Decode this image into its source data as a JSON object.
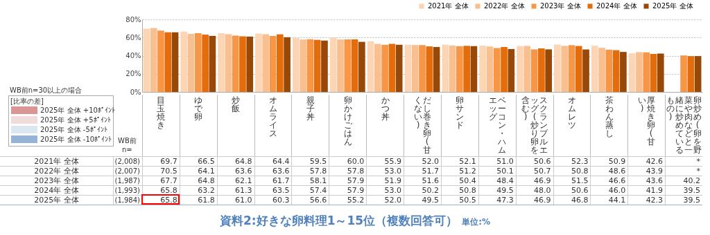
{
  "chart_data": {
    "type": "bar",
    "title": "資料2:好きな卵料理1～15位（複数回答可）",
    "subtitle": "単位:%",
    "categories": [
      "目玉焼き",
      "ゆで卵",
      "炒飯",
      "オムライス",
      "親子丼",
      "卵かけごはん",
      "かつ丼",
      "だし巻き卵(甘くない)",
      "卵サンド",
      "ベーコン・ハムエッグ",
      "スクランブルエッグ(炒り卵を含む)",
      "オムレツ",
      "茶わん蒸し",
      "厚焼き卵(甘い)",
      "卵炒め(卵を野菜や肉などと一緒に炒めているもの)"
    ],
    "series": [
      {
        "name": "2021年 全体",
        "color": "#fcd5b5",
        "values": [
          69.7,
          66.5,
          64.8,
          64.4,
          59.5,
          60.0,
          55.9,
          52.0,
          52.1,
          51.0,
          50.6,
          52.3,
          50.9,
          42.6,
          null
        ],
        "value_labels": [
          "69.7",
          "66.5",
          "64.8",
          "64.4",
          "59.5",
          "60.0",
          "55.9",
          "52.0",
          "52.1",
          "51.0",
          "50.6",
          "52.3",
          "50.9",
          "42.6",
          "*"
        ]
      },
      {
        "name": "2022年 全体",
        "color": "#fabf8f",
        "values": [
          70.5,
          64.1,
          63.6,
          63.6,
          57.8,
          57.8,
          53.0,
          51.7,
          51.2,
          50.1,
          50.7,
          50.8,
          48.6,
          43.9,
          null
        ],
        "value_labels": [
          "70.5",
          "64.1",
          "63.6",
          "63.6",
          "57.8",
          "57.8",
          "53.0",
          "51.7",
          "51.2",
          "50.1",
          "50.7",
          "50.8",
          "48.6",
          "43.9",
          "*"
        ]
      },
      {
        "name": "2023年 全体",
        "color": "#f79646",
        "values": [
          67.7,
          64.8,
          62.1,
          61.7,
          58.1,
          57.9,
          51.9,
          51.6,
          50.4,
          48.4,
          46.9,
          51.5,
          46.6,
          43.6,
          40.2
        ],
        "value_labels": [
          "67.7",
          "64.8",
          "62.1",
          "61.7",
          "58.1",
          "57.9",
          "51.9",
          "51.6",
          "50.4",
          "48.4",
          "46.9",
          "51.5",
          "46.6",
          "43.6",
          "40.2"
        ]
      },
      {
        "name": "2024年 全体",
        "color": "#e46c0a",
        "values": [
          65.8,
          63.2,
          61.3,
          63.5,
          57.4,
          57.9,
          53.0,
          50.2,
          50.8,
          49.5,
          48.0,
          50.6,
          46.0,
          41.9,
          39.5
        ],
        "value_labels": [
          "65.8",
          "63.2",
          "61.3",
          "63.5",
          "57.4",
          "57.9",
          "53.0",
          "50.2",
          "50.8",
          "49.5",
          "48.0",
          "50.6",
          "46.0",
          "41.9",
          "39.5"
        ]
      },
      {
        "name": "2025年 全体",
        "color": "#984807",
        "values": [
          65.8,
          61.8,
          61.0,
          60.3,
          56.6,
          55.2,
          52.0,
          49.5,
          50.5,
          47.3,
          46.9,
          46.8,
          44.1,
          42.3,
          39.5
        ],
        "value_labels": [
          "65.8",
          "61.8",
          "61.0",
          "60.3",
          "56.6",
          "55.2",
          "52.0",
          "49.5",
          "50.5",
          "47.3",
          "46.9",
          "46.8",
          "44.1",
          "42.3",
          "39.5"
        ]
      }
    ],
    "ylim": [
      0,
      80
    ],
    "yticks": [
      {
        "value": 0,
        "label": "0%"
      },
      {
        "value": 20,
        "label": "20%"
      },
      {
        "value": 40,
        "label": "40%"
      },
      {
        "value": 60,
        "label": "60%"
      },
      {
        "value": 80,
        "label": "80%"
      }
    ],
    "grid": "y",
    "legend": "top right",
    "annotations": [
      "WB前n=30以上の場合",
      "[比率の差]",
      "2025年 全体 +10ﾎﾟｲﾝﾄ",
      "2025年 全体 +5ﾎﾟｲﾝﾄ",
      "2025年 全体 -5ﾎﾟｲﾝﾄ",
      "2025年 全体 -10ﾎﾟｲﾝﾄ",
      "WB前",
      "n=",
      "(2,008)",
      "(2,007)",
      "(1,987)",
      "(1,993)",
      "(1,984)"
    ]
  }
}
